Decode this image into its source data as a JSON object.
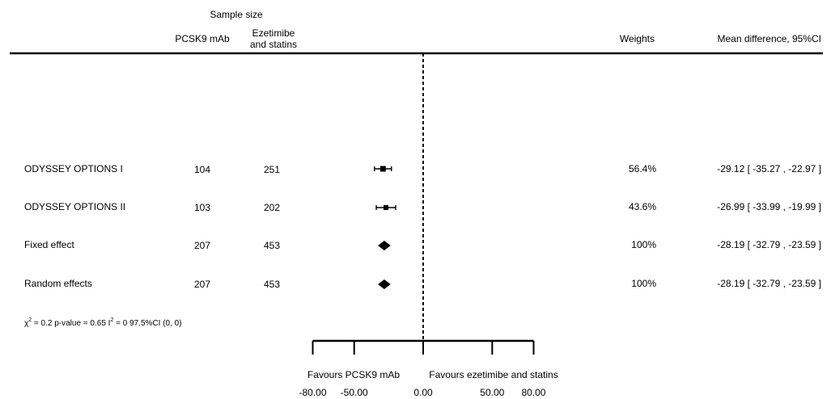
{
  "header": {
    "sample_size": "Sample size",
    "col_a": "PCSK9 mAb",
    "col_b_line1": "Ezetimibe",
    "col_b_line2": "and statins",
    "weights": "Weights",
    "effect": "Mean difference, 95%CI"
  },
  "chart_data": {
    "type": "forest",
    "x_ticks": [
      "-80.00",
      "-50.00",
      "0.00",
      "50.00",
      "80.00"
    ],
    "x_tick_values": [
      -80,
      -50,
      0,
      50,
      80
    ],
    "xlim": [
      -80,
      80
    ],
    "reference_line": 0,
    "favours_left": "Favours PCSK9 mAb",
    "favours_right": "Favours ezetimibe and statins",
    "rows": [
      {
        "label": "ODYSSEY OPTIONS I",
        "n_a": "104",
        "n_b": "251",
        "weight": "56.4%",
        "ci_text": "-29.12 [ -35.27 , -22.97 ]",
        "est": -29.12,
        "lo": -35.27,
        "hi": -22.97,
        "kind": "study"
      },
      {
        "label": "ODYSSEY OPTIONS II",
        "n_a": "103",
        "n_b": "202",
        "weight": "43.6%",
        "ci_text": "-26.99 [ -33.99 , -19.99 ]",
        "est": -26.99,
        "lo": -33.99,
        "hi": -19.99,
        "kind": "study"
      },
      {
        "label": "Fixed effect",
        "n_a": "207",
        "n_b": "453",
        "weight": "100%",
        "ci_text": "-28.19 [ -32.79 , -23.59 ]",
        "est": -28.19,
        "lo": -32.79,
        "hi": -23.59,
        "kind": "summary"
      },
      {
        "label": "Random effects",
        "n_a": "207",
        "n_b": "453",
        "weight": "100%",
        "ci_text": "-28.19 [ -32.79 , -23.59 ]",
        "est": -28.19,
        "lo": -32.79,
        "hi": -23.59,
        "kind": "summary"
      }
    ],
    "heterogeneity": {
      "chi_symbol": "χ",
      "chi_sup": "2",
      "chi_rest": " = 0.2  p-value = 0.65  I",
      "i_sup": "2",
      "i_rest": " = 0  97.5%CI (0, 0)"
    }
  }
}
